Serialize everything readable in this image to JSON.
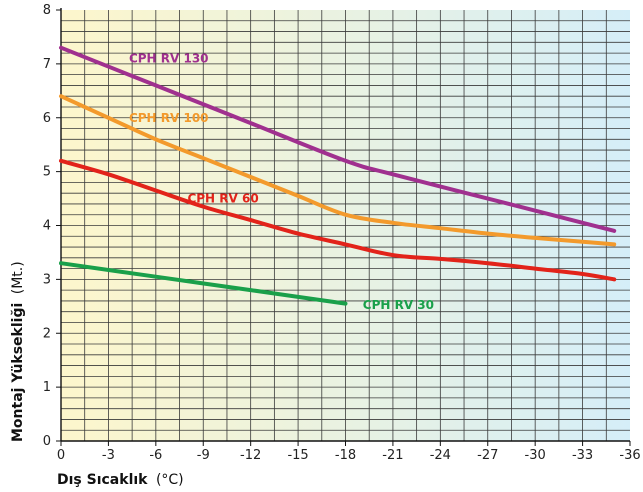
{
  "chart_data": {
    "type": "line",
    "xlabel": {
      "bold": "Dış Sıcaklık",
      "unit": "(°C)"
    },
    "ylabel": {
      "bold": "Montaj Yüksekliği",
      "unit": "(Mt.)"
    },
    "xlim": [
      0,
      -36
    ],
    "ylim": [
      0,
      8
    ],
    "x_ticks": [
      "0",
      "-3",
      "-6",
      "-9",
      "-12",
      "-15",
      "-18",
      "-21",
      "-24",
      "-27",
      "-30",
      "-33",
      "-36"
    ],
    "y_ticks": [
      "0",
      "1",
      "2",
      "3",
      "4",
      "5",
      "6",
      "7",
      "8"
    ],
    "grid": true,
    "background_gradient": [
      "#fdf6cc",
      "#d5eef8"
    ],
    "series": [
      {
        "name": "CPH RV 130",
        "color": "#a0308f",
        "x": [
          0,
          -6,
          -12,
          -18,
          -21,
          -27,
          -33,
          -35
        ],
        "y": [
          7.3,
          6.6,
          5.9,
          5.2,
          4.95,
          4.5,
          4.05,
          3.9
        ]
      },
      {
        "name": "CPH RV 100",
        "color": "#f39a2c",
        "x": [
          0,
          -3,
          -6,
          -9,
          -12,
          -15,
          -18,
          -21,
          -24,
          -27,
          -30,
          -33,
          -35
        ],
        "y": [
          6.4,
          6.0,
          5.6,
          5.25,
          4.9,
          4.55,
          4.2,
          4.05,
          3.95,
          3.85,
          3.77,
          3.7,
          3.65
        ]
      },
      {
        "name": "CPH RV 60",
        "color": "#e2231a",
        "x": [
          0,
          -3,
          -6,
          -9,
          -12,
          -15,
          -18,
          -21,
          -24,
          -27,
          -30,
          -33,
          -35
        ],
        "y": [
          5.2,
          4.95,
          4.65,
          4.35,
          4.1,
          3.85,
          3.65,
          3.45,
          3.38,
          3.3,
          3.2,
          3.1,
          3.0
        ]
      },
      {
        "name": "CPH RV 30",
        "color": "#1aa04a",
        "x": [
          0,
          -6,
          -12,
          -18
        ],
        "y": [
          3.3,
          3.05,
          2.8,
          2.55
        ]
      }
    ]
  }
}
